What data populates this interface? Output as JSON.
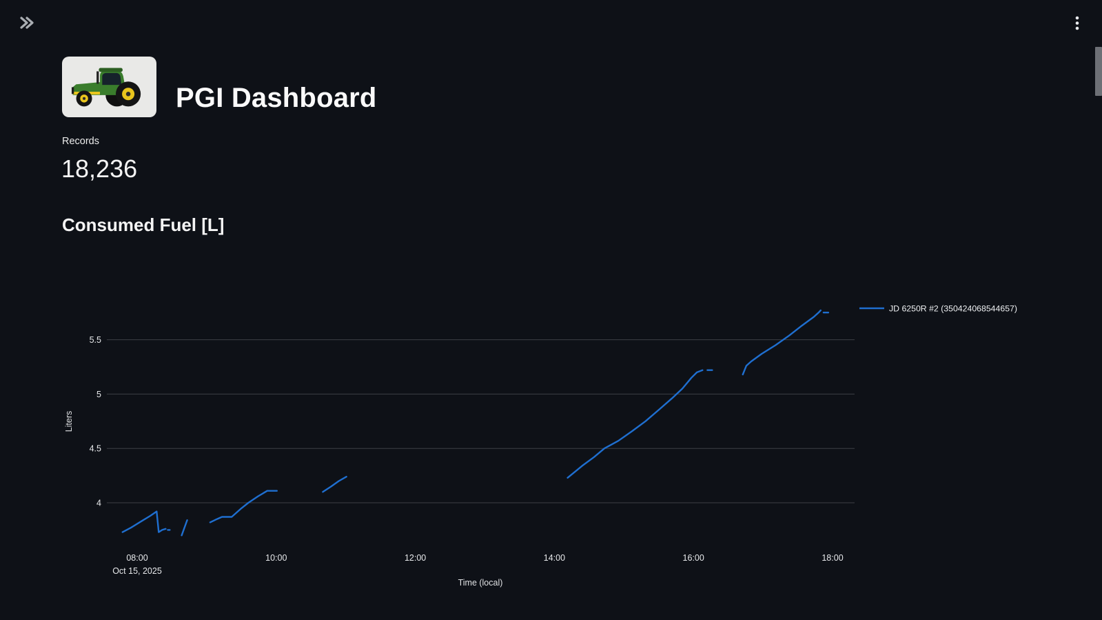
{
  "header": {
    "title": "PGI Dashboard"
  },
  "stats": {
    "records_label": "Records",
    "records_value": "18,236"
  },
  "colors": {
    "background": "#0e1117",
    "series_blue": "#1f6fd0",
    "grid_line": "#3d4046",
    "tick_text": "#e8eaec",
    "scrollbar": "#6d7076"
  },
  "chart_data": {
    "type": "line",
    "title": "Consumed Fuel [L]",
    "xlabel": "Time (local)",
    "ylabel": "Liters",
    "date_label": "Oct 15, 2025",
    "grid": "horizontal",
    "legend_position": "right-top",
    "x_ticks": [
      {
        "h": 8,
        "label": "08:00"
      },
      {
        "h": 10,
        "label": "10:00"
      },
      {
        "h": 12,
        "label": "12:00"
      },
      {
        "h": 14,
        "label": "14:00"
      },
      {
        "h": 16,
        "label": "16:00"
      },
      {
        "h": 18,
        "label": "18:00"
      }
    ],
    "y_ticks": [
      {
        "v": 4,
        "label": "4"
      },
      {
        "v": 4.5,
        "label": "4.5"
      },
      {
        "v": 5,
        "label": "5"
      },
      {
        "v": 5.5,
        "label": "5.5"
      }
    ],
    "xlim_hours": [
      7.55,
      18.35
    ],
    "ylim": [
      3.58,
      5.92
    ],
    "series": [
      {
        "name": "JD 6250R #2 (350424068544657)",
        "color": "#1f6fd0",
        "segments_hours_liters": [
          [
            [
              7.79,
              3.73
            ],
            [
              7.91,
              3.77
            ],
            [
              8.06,
              3.83
            ],
            [
              8.19,
              3.88
            ],
            [
              8.28,
              3.92
            ],
            [
              8.31,
              3.73
            ],
            [
              8.36,
              3.75
            ],
            [
              8.41,
              3.76
            ]
          ],
          [
            [
              8.44,
              3.75
            ],
            [
              8.47,
              3.75
            ]
          ],
          [
            [
              8.64,
              3.7
            ],
            [
              8.68,
              3.77
            ],
            [
              8.72,
              3.84
            ]
          ],
          [
            [
              9.05,
              3.82
            ],
            [
              9.15,
              3.85
            ],
            [
              9.22,
              3.87
            ],
            [
              9.3,
              3.87
            ],
            [
              9.36,
              3.87
            ],
            [
              9.5,
              3.95
            ],
            [
              9.6,
              4.0
            ],
            [
              9.74,
              4.06
            ],
            [
              9.87,
              4.11
            ],
            [
              9.94,
              4.11
            ],
            [
              10.01,
              4.11
            ]
          ],
          [
            [
              10.67,
              4.1
            ],
            [
              10.79,
              4.15
            ],
            [
              10.9,
              4.2
            ],
            [
              11.01,
              4.24
            ]
          ],
          [
            [
              14.19,
              4.23
            ],
            [
              14.4,
              4.34
            ],
            [
              14.57,
              4.42
            ],
            [
              14.72,
              4.5
            ],
            [
              14.92,
              4.57
            ],
            [
              15.12,
              4.66
            ],
            [
              15.31,
              4.75
            ],
            [
              15.51,
              4.86
            ],
            [
              15.69,
              4.96
            ],
            [
              15.84,
              5.05
            ],
            [
              15.97,
              5.15
            ],
            [
              16.05,
              5.2
            ],
            [
              16.13,
              5.22
            ]
          ],
          [
            [
              16.2,
              5.22
            ],
            [
              16.27,
              5.22
            ]
          ],
          [
            [
              16.71,
              5.18
            ],
            [
              16.76,
              5.26
            ],
            [
              16.83,
              5.3
            ],
            [
              16.98,
              5.37
            ],
            [
              17.18,
              5.45
            ],
            [
              17.38,
              5.54
            ],
            [
              17.56,
              5.63
            ],
            [
              17.73,
              5.71
            ],
            [
              17.8,
              5.75
            ],
            [
              17.83,
              5.77
            ]
          ],
          [
            [
              17.87,
              5.75
            ],
            [
              17.94,
              5.75
            ]
          ]
        ]
      }
    ]
  }
}
